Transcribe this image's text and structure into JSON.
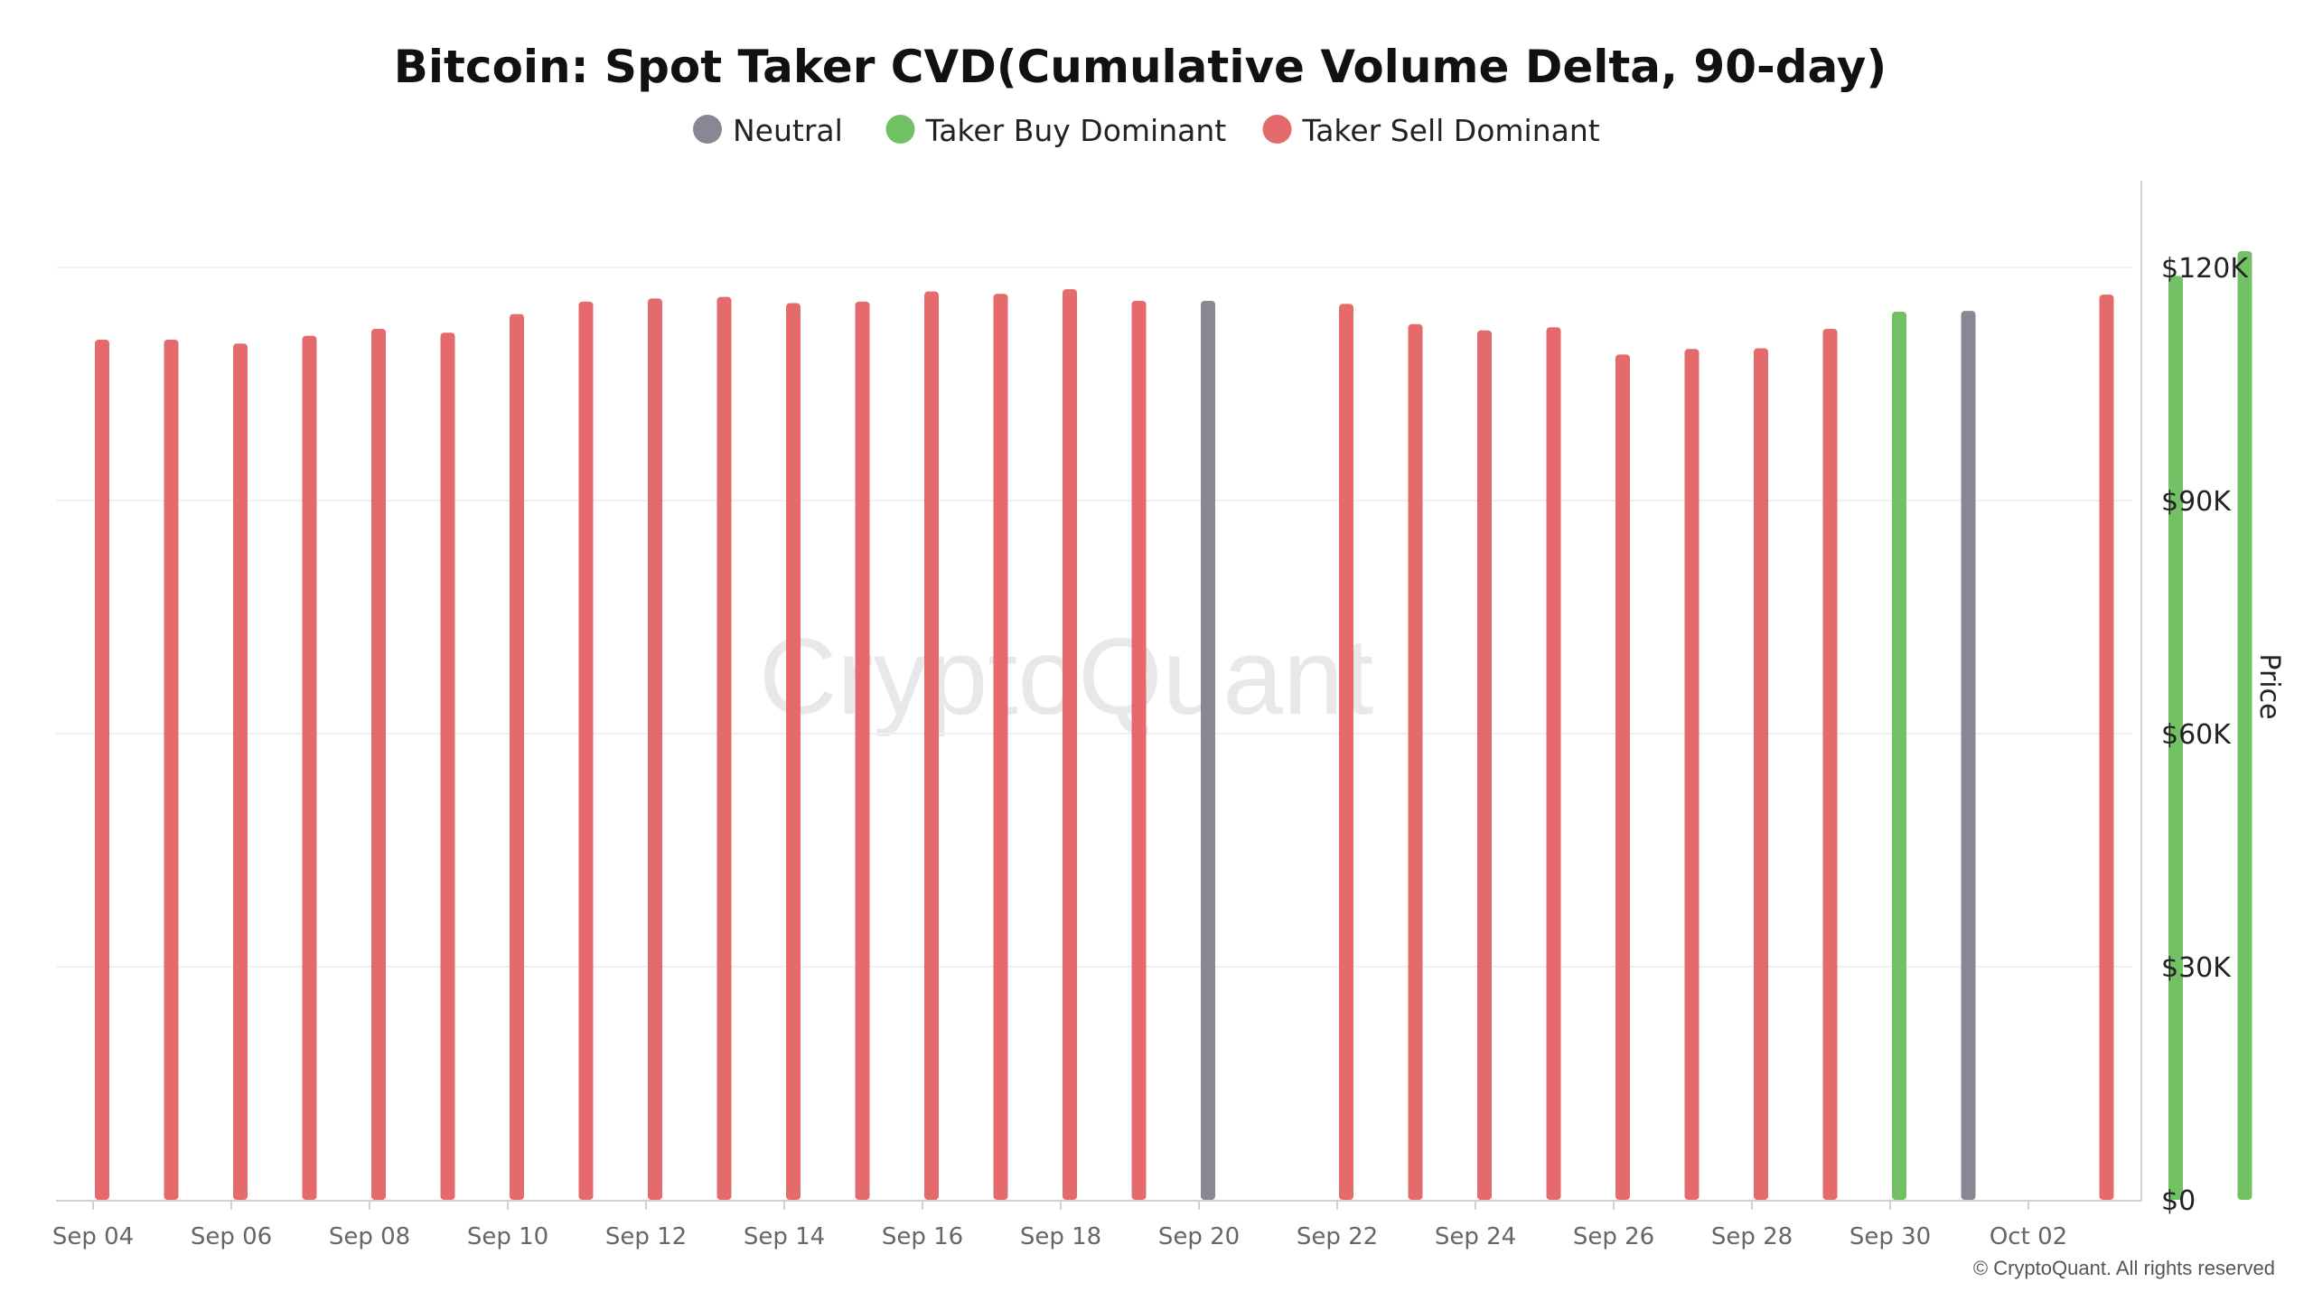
{
  "chart_data": {
    "type": "bar",
    "title": "Bitcoin: Spot Taker CVD(Cumulative Volume Delta, 90-day)",
    "ylabel": "Price",
    "xlabel": "",
    "ylim": [
      0,
      130000
    ],
    "y_ticks": [
      {
        "value": 0,
        "label": "$0"
      },
      {
        "value": 30000,
        "label": "$30K"
      },
      {
        "value": 60000,
        "label": "$60K"
      },
      {
        "value": 90000,
        "label": "$90K"
      },
      {
        "value": 120000,
        "label": "$120K"
      }
    ],
    "x_ticks": [
      "Sep 04",
      "Sep 06",
      "Sep 08",
      "Sep 10",
      "Sep 12",
      "Sep 14",
      "Sep 16",
      "Sep 18",
      "Sep 20",
      "Sep 22",
      "Sep 24",
      "Sep 26",
      "Sep 28",
      "Sep 30",
      "Oct 02"
    ],
    "legend": {
      "placement": "top-center",
      "items": [
        {
          "key": "neutral",
          "label": "Neutral",
          "color": "#8a8794"
        },
        {
          "key": "buy",
          "label": "Taker Buy Dominant",
          "color": "#72c164"
        },
        {
          "key": "sell",
          "label": "Taker Sell Dominant",
          "color": "#e56a6b"
        }
      ]
    },
    "series": [
      {
        "date": "Sep 04",
        "value": 110700,
        "state": "sell"
      },
      {
        "date": "Sep 05",
        "value": 110700,
        "state": "sell"
      },
      {
        "date": "Sep 06",
        "value": 110200,
        "state": "sell"
      },
      {
        "date": "Sep 07",
        "value": 111200,
        "state": "sell"
      },
      {
        "date": "Sep 08",
        "value": 112100,
        "state": "sell"
      },
      {
        "date": "Sep 09",
        "value": 111600,
        "state": "sell"
      },
      {
        "date": "Sep 10",
        "value": 114000,
        "state": "sell"
      },
      {
        "date": "Sep 11",
        "value": 115600,
        "state": "sell"
      },
      {
        "date": "Sep 12",
        "value": 116000,
        "state": "sell"
      },
      {
        "date": "Sep 13",
        "value": 116200,
        "state": "sell"
      },
      {
        "date": "Sep 14",
        "value": 115400,
        "state": "sell"
      },
      {
        "date": "Sep 15",
        "value": 115600,
        "state": "sell"
      },
      {
        "date": "Sep 16",
        "value": 116900,
        "state": "sell"
      },
      {
        "date": "Sep 17",
        "value": 116600,
        "state": "sell"
      },
      {
        "date": "Sep 18",
        "value": 117200,
        "state": "sell"
      },
      {
        "date": "Sep 19",
        "value": 115700,
        "state": "sell"
      },
      {
        "date": "Sep 20",
        "value": 115700,
        "state": "neutral"
      },
      {
        "date": "Sep 21",
        "value": null,
        "state": "none"
      },
      {
        "date": "Sep 22",
        "value": 115300,
        "state": "sell"
      },
      {
        "date": "Sep 23",
        "value": 112700,
        "state": "sell"
      },
      {
        "date": "Sep 24",
        "value": 111900,
        "state": "sell"
      },
      {
        "date": "Sep 25",
        "value": 112300,
        "state": "sell"
      },
      {
        "date": "Sep 26",
        "value": 108800,
        "state": "sell"
      },
      {
        "date": "Sep 27",
        "value": 109500,
        "state": "sell"
      },
      {
        "date": "Sep 28",
        "value": 109600,
        "state": "sell"
      },
      {
        "date": "Sep 29",
        "value": 112100,
        "state": "sell"
      },
      {
        "date": "Sep 30",
        "value": 114300,
        "state": "buy"
      },
      {
        "date": "Oct 01",
        "value": 114400,
        "state": "neutral"
      },
      {
        "date": "Oct 02",
        "value": null,
        "state": "none"
      },
      {
        "date": "Oct 03",
        "value": 116500,
        "state": "sell"
      },
      {
        "date": "Oct 04",
        "value": 118900,
        "state": "buy"
      },
      {
        "date": "Oct 05",
        "value": 122100,
        "state": "buy"
      }
    ],
    "grid": true,
    "watermark": "CryptoQuant",
    "credit": "© CryptoQuant. All rights reserved"
  }
}
